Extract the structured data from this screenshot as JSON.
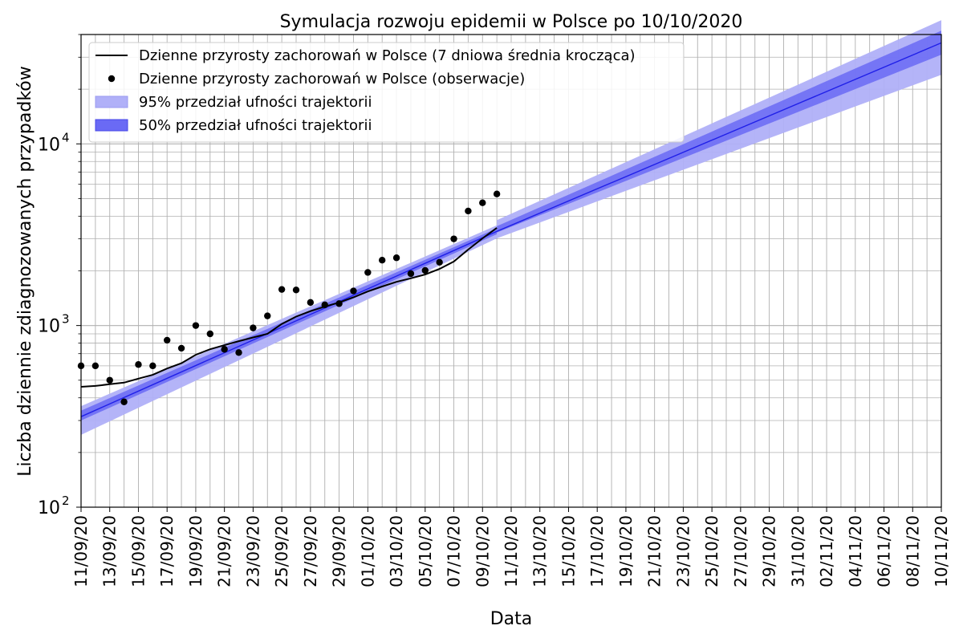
{
  "chart_data": {
    "type": "line",
    "title": "Symulacja rozwoju epidemii w Polsce po 10/10/2020",
    "xlabel": "Data",
    "ylabel": "Liczba dziennie zdiagnozowanych przypadków",
    "yscale": "log",
    "ylim": [
      100,
      40000
    ],
    "xlim": [
      "2020-09-11",
      "2020-11-10"
    ],
    "grid": true,
    "legend_position": "top-left",
    "y_ticks": [
      {
        "base": "10",
        "exp": "2",
        "value": 100
      },
      {
        "base": "10",
        "exp": "3",
        "value": 1000
      },
      {
        "base": "10",
        "exp": "4",
        "value": 10000
      }
    ],
    "x_tick_labels": [
      "11/09/20",
      "13/09/20",
      "15/09/20",
      "17/09/20",
      "19/09/20",
      "21/09/20",
      "23/09/20",
      "25/09/20",
      "27/09/20",
      "29/09/20",
      "01/10/20",
      "03/10/20",
      "05/10/20",
      "07/10/20",
      "09/10/20",
      "11/10/20",
      "13/10/20",
      "15/10/20",
      "17/10/20",
      "19/10/20",
      "21/10/20",
      "23/10/20",
      "25/10/20",
      "27/10/20",
      "29/10/20",
      "31/10/20",
      "02/11/20",
      "04/11/20",
      "06/11/20",
      "08/11/20",
      "10/11/20"
    ],
    "legend": [
      {
        "label": "Dzienne przyrosty zachorowań w Polsce (7 dniowa średnia krocząca)",
        "kind": "line",
        "color": "#000000"
      },
      {
        "label": "Dzienne przyrosty zachorowań w Polsce (obserwacje)",
        "kind": "marker",
        "color": "#000000"
      },
      {
        "label": "95% przedział ufności trajektorii",
        "kind": "patch",
        "color": "#b0b0f8"
      },
      {
        "label": "50% przedział ufności trajektorii",
        "kind": "patch",
        "color": "#6a6af5"
      }
    ],
    "series": [
      {
        "name": "Dzienne przyrosty zachorowań w Polsce (obserwacje)",
        "type": "scatter",
        "color": "#000000",
        "x": [
          "2020-09-11",
          "2020-09-12",
          "2020-09-13",
          "2020-09-14",
          "2020-09-15",
          "2020-09-16",
          "2020-09-17",
          "2020-09-18",
          "2020-09-19",
          "2020-09-20",
          "2020-09-21",
          "2020-09-22",
          "2020-09-23",
          "2020-09-24",
          "2020-09-25",
          "2020-09-26",
          "2020-09-27",
          "2020-09-28",
          "2020-09-29",
          "2020-09-30",
          "2020-10-01",
          "2020-10-02",
          "2020-10-03",
          "2020-10-04",
          "2020-10-05",
          "2020-10-06",
          "2020-10-07",
          "2020-10-08",
          "2020-10-09",
          "2020-10-10"
        ],
        "y": [
          600,
          600,
          500,
          380,
          610,
          600,
          830,
          750,
          1000,
          900,
          740,
          710,
          970,
          1130,
          1580,
          1570,
          1340,
          1300,
          1320,
          1550,
          1960,
          2290,
          2360,
          1930,
          2010,
          2230,
          3000,
          4270,
          4740,
          5300
        ]
      },
      {
        "name": "Dzienne przyrosty zachorowań w Polsce (7 dniowa średnia krocząca)",
        "type": "line",
        "color": "#000000",
        "x": [
          "2020-09-11",
          "2020-09-12",
          "2020-09-13",
          "2020-09-14",
          "2020-09-15",
          "2020-09-16",
          "2020-09-17",
          "2020-09-18",
          "2020-09-19",
          "2020-09-20",
          "2020-09-21",
          "2020-09-22",
          "2020-09-23",
          "2020-09-24",
          "2020-09-25",
          "2020-09-26",
          "2020-09-27",
          "2020-09-28",
          "2020-09-29",
          "2020-09-30",
          "2020-10-01",
          "2020-10-02",
          "2020-10-03",
          "2020-10-04",
          "2020-10-05",
          "2020-10-06",
          "2020-10-07",
          "2020-10-08",
          "2020-10-09",
          "2020-10-10"
        ],
        "y": [
          460,
          465,
          475,
          485,
          510,
          535,
          580,
          620,
          690,
          740,
          780,
          820,
          860,
          900,
          1020,
          1120,
          1200,
          1270,
          1340,
          1430,
          1540,
          1640,
          1740,
          1820,
          1910,
          2050,
          2250,
          2620,
          3020,
          3450
        ]
      }
    ],
    "bands": [
      {
        "name": "95% przedział ufności trajektorii",
        "color": "#b0b0f8",
        "x": [
          "2020-09-11",
          "2020-10-10",
          "2020-10-10",
          "2020-11-10"
        ],
        "lower": [
          250,
          3020,
          3020,
          24000
        ],
        "upper": [
          360,
          3560,
          3800,
          48000
        ]
      },
      {
        "name": "50% przedział ufności trajektorii",
        "color": "#6a6af5",
        "x": [
          "2020-09-11",
          "2020-10-10",
          "2020-10-10",
          "2020-11-10"
        ],
        "lower": [
          300,
          3180,
          3250,
          31000
        ],
        "upper": [
          340,
          3430,
          3520,
          42000
        ]
      }
    ],
    "median_line": {
      "color": "#2020e8",
      "x": [
        "2020-09-11",
        "2020-10-10",
        "2020-11-10"
      ],
      "y": [
        315,
        3300,
        36000
      ]
    }
  }
}
